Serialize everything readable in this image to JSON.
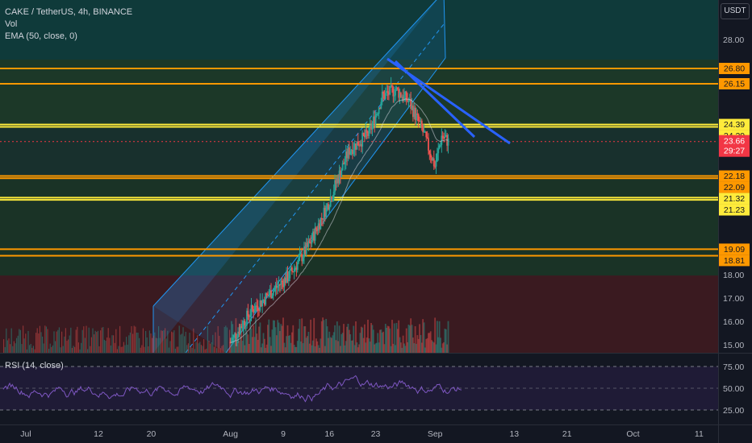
{
  "header": {
    "symbol_line": "CAKE / TetherUS, 4h, BINANCE",
    "vol_label": "Vol",
    "ema_label": "EMA (50, close, 0)",
    "currency": "USDT"
  },
  "rsi": {
    "label": "RSI (14, close)",
    "levels": [
      "75.00",
      "50.00",
      "25.00"
    ]
  },
  "colors": {
    "background": "#131722",
    "up": "#26a69a",
    "down": "#ef5350",
    "orange_level": "#ff9800",
    "yellow_level": "#ffeb3b",
    "trendline": "#2962ff",
    "channel": "#2196f3",
    "rsi_line": "#7e57c2"
  },
  "chart_data": {
    "type": "candlestick",
    "symbol": "CAKE / TetherUS",
    "interval": "4h",
    "exchange": "BINANCE",
    "y_ticks": [
      "28.00",
      "18.00",
      "17.00",
      "16.00",
      "15.00"
    ],
    "x_ticks": [
      "Jul",
      "12",
      "20",
      "Aug",
      "9",
      "16",
      "23",
      "Sep",
      "13",
      "21",
      "Oct",
      "11"
    ],
    "price_levels": [
      {
        "label": "26.80",
        "value": 26.8,
        "color": "#ff9800"
      },
      {
        "label": "26.15",
        "value": 26.15,
        "color": "#ff9800"
      },
      {
        "label": "24.39",
        "value": 24.39,
        "color": "#ffeb3b"
      },
      {
        "label": "24.29",
        "value": 24.29,
        "color": "#ffeb3b"
      },
      {
        "label": "22.18",
        "value": 22.18,
        "color": "#ff9800"
      },
      {
        "label": "22.09",
        "value": 22.09,
        "color": "#ff9800"
      },
      {
        "label": "21.32",
        "value": 21.32,
        "color": "#ffeb3b"
      },
      {
        "label": "21.23",
        "value": 21.23,
        "color": "#ffeb3b"
      },
      {
        "label": "19.09",
        "value": 19.09,
        "color": "#ff9800"
      },
      {
        "label": "18.81",
        "value": 18.81,
        "color": "#ff9800"
      }
    ],
    "current_price": {
      "value": 23.66,
      "label": "23.66",
      "countdown": "29:27",
      "color": "#f23645"
    },
    "close_path": [
      {
        "date": "2021-08-01",
        "close": 15.1
      },
      {
        "date": "2021-08-04",
        "close": 16.4
      },
      {
        "date": "2021-08-07",
        "close": 17.2
      },
      {
        "date": "2021-08-10",
        "close": 18.0
      },
      {
        "date": "2021-08-13",
        "close": 19.3
      },
      {
        "date": "2021-08-16",
        "close": 21.2
      },
      {
        "date": "2021-08-19",
        "close": 23.3
      },
      {
        "date": "2021-08-22",
        "close": 24.0
      },
      {
        "date": "2021-08-24",
        "close": 25.6
      },
      {
        "date": "2021-08-26",
        "close": 25.9
      },
      {
        "date": "2021-08-28",
        "close": 25.4
      },
      {
        "date": "2021-08-30",
        "close": 24.2
      },
      {
        "date": "2021-09-01",
        "close": 22.6
      },
      {
        "date": "2021-09-02",
        "close": 23.9
      },
      {
        "date": "2021-09-03",
        "close": 23.66
      }
    ],
    "rsi_range": [
      25,
      75
    ]
  }
}
